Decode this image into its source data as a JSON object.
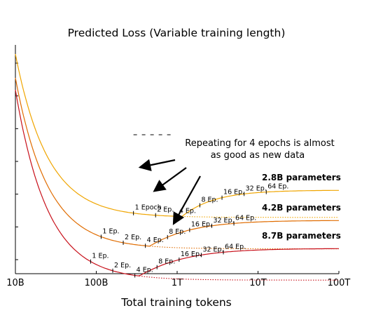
{
  "chart_data": {
    "type": "line",
    "title": "Predicted Loss (Variable training length)",
    "xlabel": "Total training tokens",
    "ylabel": "",
    "x_scale": "log",
    "xlim": [
      "10B",
      "100T"
    ],
    "x_ticks": [
      "10B",
      "100B",
      "1T",
      "10T",
      "100T"
    ],
    "y_tick_count": 7,
    "grid": false,
    "legend": "none",
    "annotation": "Repeating for 4 epochs is almost as good as new data",
    "first_epoch_label": "1 Epoch",
    "epoch_labels": [
      "1 Ep.",
      "2 Ep.",
      "4 Ep.",
      "8 Ep.",
      "16 Ep.",
      "32 Ep.",
      "64 Ep."
    ],
    "series": [
      {
        "name": "2.8B parameters",
        "color": "#f0a500",
        "epochs": [
          1,
          2,
          4,
          8,
          16,
          32,
          64
        ],
        "epoch_labels_shown": [
          "1 Epoch",
          "2 Ep.",
          "4 Ep.",
          "8 Ep.",
          "16 Ep.",
          "32 Ep.",
          "64 Ep."
        ]
      },
      {
        "name": "4.2B parameters",
        "color": "#e06c00",
        "epochs": [
          1,
          2,
          4,
          8,
          16,
          32,
          64
        ],
        "epoch_labels_shown": [
          "1 Ep.",
          "2 Ep.",
          "4 Ep.",
          "8 Ep.",
          "16 Ep.",
          "32 Ep.",
          "64 Ep."
        ]
      },
      {
        "name": "8.7B parameters",
        "color": "#c8101a",
        "epochs": [
          1,
          2,
          4,
          8,
          16,
          32,
          64
        ],
        "epoch_labels_shown": [
          "1 Ep.",
          "2 Ep.",
          "4 Ep.",
          "8 Ep.",
          "16 Ep.",
          "32 Ep.",
          "64 Ep."
        ]
      }
    ]
  }
}
